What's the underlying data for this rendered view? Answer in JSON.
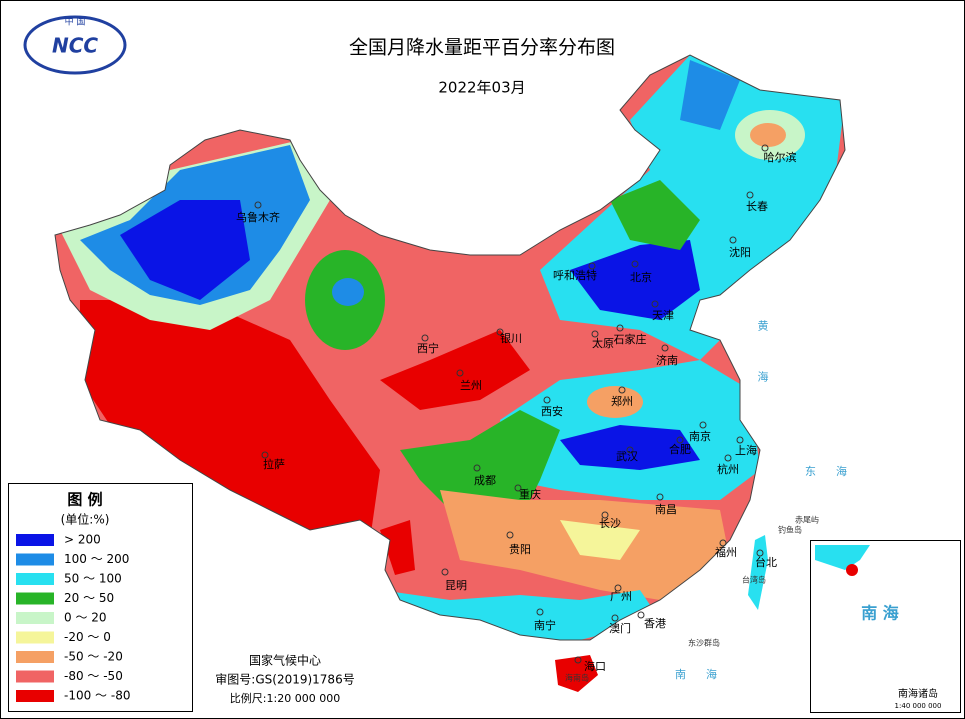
{
  "title": "全国月降水量距平百分率分布图",
  "subtitle": "2022年03月",
  "logo": {
    "top": "中 国",
    "text": "NCC"
  },
  "legend": {
    "title": "图 例",
    "unit": "(单位:%)",
    "items": [
      {
        "label": "> 200",
        "color": "#0a14e6"
      },
      {
        "label": "100 ～ 200",
        "color": "#1e8ce6"
      },
      {
        "label": "50 ～ 100",
        "color": "#28e0f0"
      },
      {
        "label": "20 ～ 50",
        "color": "#28b428"
      },
      {
        "label": "0 ～ 20",
        "color": "#c8f5c8"
      },
      {
        "label": "-20 ～ 0",
        "color": "#f5f59a"
      },
      {
        "label": "-50 ～ -20",
        "color": "#f5a064"
      },
      {
        "label": "-80 ～ -50",
        "color": "#f06464"
      },
      {
        "label": "-100 ～ -80",
        "color": "#e80000"
      }
    ]
  },
  "cities": [
    "乌鲁木齐",
    "哈尔滨",
    "长春",
    "沈阳",
    "呼和浩特",
    "北京",
    "天津",
    "石家庄",
    "太原",
    "银川",
    "西宁",
    "兰州",
    "济南",
    "郑州",
    "西安",
    "南京",
    "上海",
    "合肥",
    "武汉",
    "杭州",
    "成都",
    "重庆",
    "南昌",
    "长沙",
    "福州",
    "台北",
    "贵阳",
    "昆明",
    "广州",
    "南宁",
    "澳门",
    "香港",
    "海口",
    "拉萨"
  ],
  "seas": [
    "黄海",
    "东海",
    "南海"
  ],
  "islands": [
    "钓鱼岛",
    "赤尾屿",
    "台湾岛",
    "东沙群岛",
    "海南岛"
  ],
  "inset": {
    "sea": "南 海",
    "label": "南海诸岛",
    "scale": "1:40 000 000"
  },
  "footer": {
    "org": "国家气候中心",
    "approval": "审图号:GS(2019)1786号",
    "scale": "比例尺:1:20 000 000"
  }
}
